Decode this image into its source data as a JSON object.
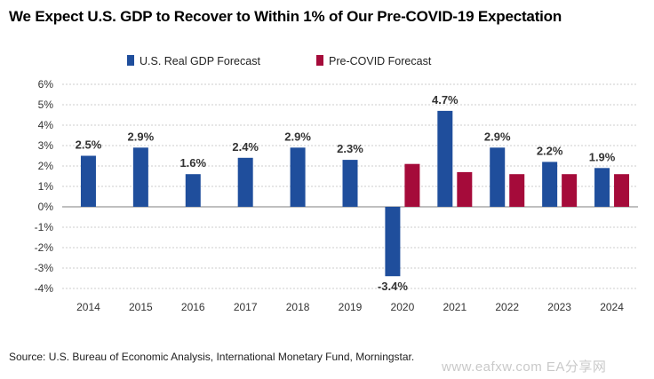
{
  "title": "We Expect U.S. GDP to Recover to Within 1% of Our Pre-COVID-19 Expectation",
  "source": "Source: U.S. Bureau of Economic Analysis, International Monetary Fund, Morningstar.",
  "watermark": "www.eafxw.com  EA分享网",
  "colors": {
    "series1": "#1f4e9c",
    "series2": "#a50b3a",
    "grid": "#bfbfbf",
    "axis": "#999999"
  },
  "chart_data": {
    "type": "bar",
    "categories": [
      "2014",
      "2015",
      "2016",
      "2017",
      "2018",
      "2019",
      "2020",
      "2021",
      "2022",
      "2023",
      "2024"
    ],
    "series": [
      {
        "name": "U.S. Real GDP Forecast",
        "values": [
          2.5,
          2.9,
          1.6,
          2.4,
          2.9,
          2.3,
          -3.4,
          4.7,
          2.9,
          2.2,
          1.9
        ]
      },
      {
        "name": "Pre-COVID Forecast",
        "values": [
          null,
          null,
          null,
          null,
          null,
          null,
          2.1,
          1.7,
          1.6,
          1.6,
          1.6
        ]
      }
    ],
    "data_labels": [
      "2.5%",
      "2.9%",
      "1.6%",
      "2.4%",
      "2.9%",
      "2.3%",
      "-3.4%",
      "4.7%",
      "2.9%",
      "2.2%",
      "1.9%"
    ],
    "ylim": [
      -4,
      6
    ],
    "yticks": [
      6,
      5,
      4,
      3,
      2,
      1,
      0,
      -1,
      -2,
      -3,
      -4
    ],
    "ytick_labels": [
      "6%",
      "5%",
      "4%",
      "3%",
      "2%",
      "1%",
      "0%",
      "-1%",
      "-2%",
      "-3%",
      "-4%"
    ],
    "grid": true,
    "legend_position": "top-left"
  }
}
